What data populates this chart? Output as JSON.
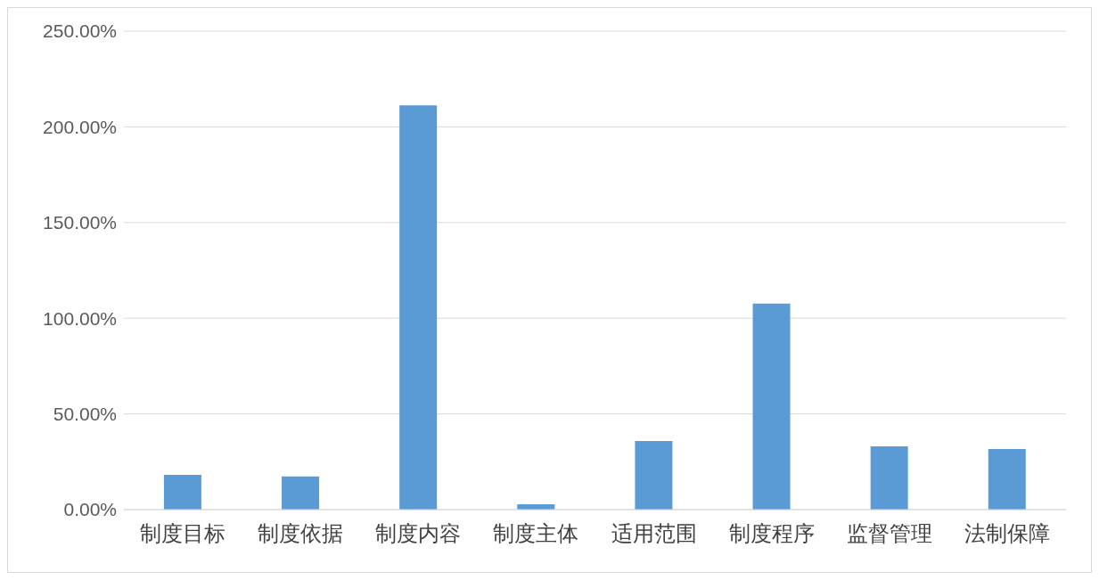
{
  "chart_data": {
    "type": "bar",
    "categories": [
      "制度目标",
      "制度依据",
      "制度内容",
      "制度主体",
      "适用范围",
      "制度程序",
      "监督管理",
      "法制保障"
    ],
    "values": [
      18.2,
      17.3,
      211.3,
      2.8,
      35.9,
      107.7,
      33.1,
      31.7
    ],
    "color": "#5b9bd5",
    "ylim": [
      0,
      250
    ],
    "yticks": [
      {
        "value": 0,
        "label": "0.00%"
      },
      {
        "value": 50,
        "label": "50.00%"
      },
      {
        "value": 100,
        "label": "100.00%"
      },
      {
        "value": 150,
        "label": "150.00%"
      },
      {
        "value": 200,
        "label": "200.00%"
      },
      {
        "value": 250,
        "label": "250.00%"
      }
    ],
    "grid": "y",
    "legend": false
  }
}
